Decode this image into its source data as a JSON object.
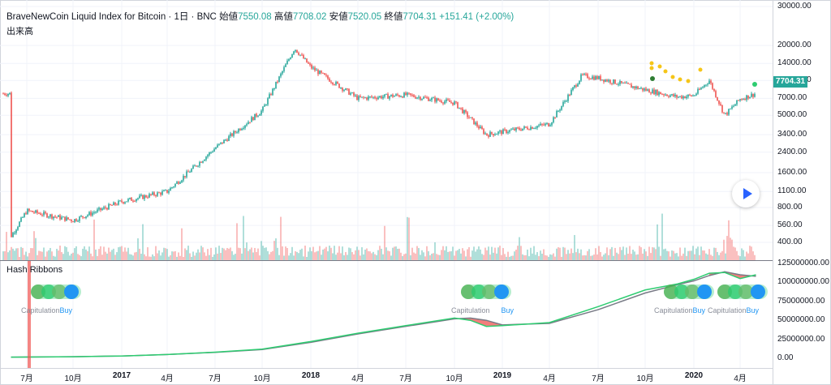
{
  "legend": {
    "title": "BraveNewCoin Liquid Index for Bitcoin · 1日 · BNC",
    "open_label": "始値",
    "open": "7550.08",
    "high_label": "高値",
    "high": "7708.02",
    "low_label": "安値",
    "low": "7520.05",
    "close_label": "終値",
    "close": "7704.31",
    "change": "+151.41 (+2.00%)"
  },
  "volume_label": "出来高",
  "indicator_label": "Hash Ribbons",
  "last_price": "7704.31",
  "price_axis": [
    "30000.00",
    "20000.00",
    "14000.00",
    "10000.00",
    "7000.00",
    "5000.00",
    "3400.00",
    "2400.00",
    "1600.00",
    "1100.00",
    "800.00",
    "560.00",
    "400.00"
  ],
  "hash_axis": [
    "125000000.00",
    "100000000.00",
    "75000000.00",
    "50000000.00",
    "25000000.00",
    "0.00"
  ],
  "time_axis": [
    {
      "label": "7月",
      "bold": false
    },
    {
      "label": "10月",
      "bold": false
    },
    {
      "label": "2017",
      "bold": true
    },
    {
      "label": "4月",
      "bold": false
    },
    {
      "label": "7月",
      "bold": false
    },
    {
      "label": "10月",
      "bold": false
    },
    {
      "label": "2018",
      "bold": true
    },
    {
      "label": "4月",
      "bold": false
    },
    {
      "label": "7月",
      "bold": false
    },
    {
      "label": "10月",
      "bold": false
    },
    {
      "label": "2019",
      "bold": true
    },
    {
      "label": "4月",
      "bold": false
    },
    {
      "label": "7月",
      "bold": false
    },
    {
      "label": "10月",
      "bold": false
    },
    {
      "label": "2020",
      "bold": true
    },
    {
      "label": "4月",
      "bold": false
    }
  ],
  "signals": [
    {
      "cap": "Capitulation",
      "buy": "Buy"
    },
    {
      "cap": "Capitulation",
      "buy": "Buy"
    },
    {
      "cap": "Capitulation",
      "buy": "Buy"
    },
    {
      "cap": "Capitulation",
      "buy": "Buy"
    }
  ],
  "colors": {
    "up": "#26a69a",
    "down": "#ef5350",
    "fast": "#2ecc71",
    "slow": "#787b86",
    "buy": "#2196f3",
    "dots": "#f5c518"
  },
  "chart_data": [
    {
      "type": "line",
      "title": "BraveNewCoin Liquid Index for Bitcoin",
      "scale": "log",
      "ylim": [
        350,
        30000
      ],
      "x": [
        "2016-06",
        "2016-07",
        "2016-10",
        "2017-01",
        "2017-04",
        "2017-07",
        "2017-10",
        "2017-12",
        "2018-01",
        "2018-04",
        "2018-07",
        "2018-10",
        "2018-12",
        "2019-01",
        "2019-04",
        "2019-06",
        "2019-07",
        "2019-10",
        "2019-12",
        "2020-01",
        "2020-02",
        "2020-03",
        "2020-04",
        "2020-05"
      ],
      "series": [
        {
          "values": [
            450,
            750,
            620,
            900,
            1100,
            2600,
            5500,
            19000,
            13000,
            7000,
            7500,
            6400,
            3400,
            3600,
            4200,
            11000,
            10500,
            8300,
            7200,
            7400,
            10000,
            5000,
            6900,
            7704
          ]
        }
      ]
    },
    {
      "type": "line",
      "title": "Hash Ribbons",
      "ylim": [
        -10000000,
        125000000
      ],
      "x": [
        "2016-06",
        "2016-10",
        "2017-01",
        "2017-04",
        "2017-07",
        "2017-10",
        "2018-01",
        "2018-04",
        "2018-07",
        "2018-10",
        "2018-11",
        "2018-12",
        "2019-01",
        "2019-04",
        "2019-07",
        "2019-10",
        "2019-12",
        "2020-01",
        "2020-02",
        "2020-03",
        "2020-04",
        "2020-05"
      ],
      "series": [
        {
          "values": [
            1500000,
            2000000,
            3000000,
            5000000,
            8000000,
            12000000,
            22000000,
            33000000,
            43000000,
            53000000,
            50000000,
            42000000,
            43000000,
            47000000,
            68000000,
            90000000,
            98000000,
            104000000,
            112000000,
            113000000,
            105000000,
            110000000
          ]
        },
        {
          "values": [
            1500000,
            2000000,
            3000000,
            5000000,
            7800000,
            11500000,
            21000000,
            32000000,
            42000000,
            52000000,
            53000000,
            50000000,
            44000000,
            46000000,
            64000000,
            86000000,
            97000000,
            102000000,
            109000000,
            114000000,
            110000000,
            108000000
          ]
        }
      ]
    }
  ]
}
